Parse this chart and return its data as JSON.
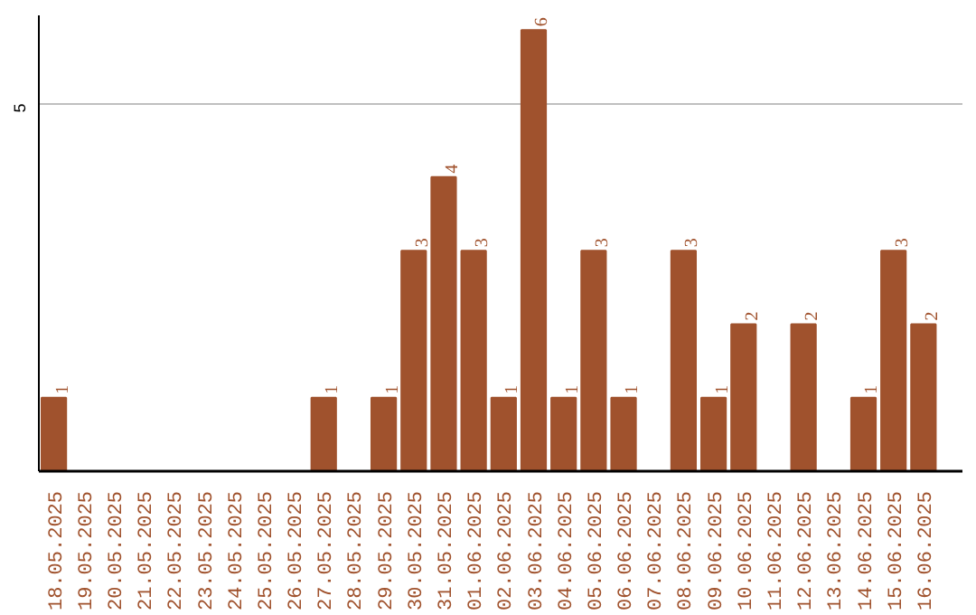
{
  "chart_data": {
    "type": "bar",
    "categories": [
      "18.05.2025",
      "19.05.2025",
      "20.05.2025",
      "21.05.2025",
      "22.05.2025",
      "23.05.2025",
      "24.05.2025",
      "25.05.2025",
      "26.05.2025",
      "27.05.2025",
      "28.05.2025",
      "29.05.2025",
      "30.05.2025",
      "31.05.2025",
      "01.06.2025",
      "02.06.2025",
      "03.06.2025",
      "04.06.2025",
      "05.06.2025",
      "06.06.2025",
      "07.06.2025",
      "08.06.2025",
      "09.06.2025",
      "10.06.2025",
      "11.06.2025",
      "12.06.2025",
      "13.06.2025",
      "14.06.2025",
      "15.06.2025",
      "16.06.2025"
    ],
    "values": [
      1,
      0,
      0,
      0,
      0,
      0,
      0,
      0,
      0,
      1,
      0,
      1,
      3,
      4,
      3,
      1,
      6,
      1,
      3,
      1,
      0,
      3,
      1,
      2,
      0,
      2,
      0,
      1,
      3,
      2
    ],
    "value_labels": [
      "1",
      null,
      null,
      null,
      null,
      null,
      null,
      null,
      null,
      "1",
      null,
      "1",
      "3",
      "4",
      "3",
      "1",
      "6",
      "1",
      "3",
      "1",
      null,
      "3",
      "1",
      "2",
      null,
      "2",
      null,
      "1",
      "3",
      "2"
    ],
    "color": "#a0522d",
    "ylim": [
      0,
      6.2
    ],
    "yticks": [
      5
    ],
    "grid": "y"
  }
}
